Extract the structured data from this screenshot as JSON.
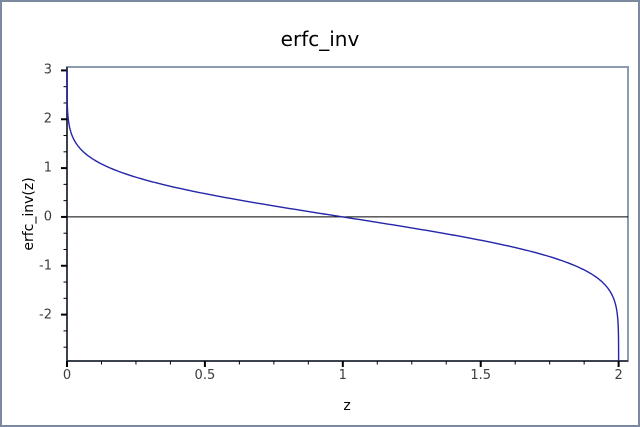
{
  "figure": {
    "background": "#ffffff",
    "border_color": "#7b89a0"
  },
  "chart_data": {
    "type": "line",
    "title": "erfc_inv",
    "xlabel": "z",
    "ylabel": "erfc_inv(z)",
    "xlim": [
      0,
      2.034
    ],
    "ylim": [
      -2.95,
      3.07
    ],
    "x_major_ticks": [
      0,
      0.5,
      1,
      1.5,
      2
    ],
    "x_major_tick_labels": [
      "0",
      "0.5",
      "1",
      "1.5",
      "2"
    ],
    "x_minor_step": 0.125,
    "y_major_ticks": [
      -2,
      -1,
      0,
      1,
      2,
      3
    ],
    "y_major_tick_labels": [
      "-2",
      "-1",
      "0",
      "1",
      "2",
      "3"
    ],
    "y_minor_step": 0.3333333,
    "grid": false,
    "legend": "none",
    "x_axis_line_at_y": 0,
    "series": [
      {
        "name": "erfc_inv(z)",
        "function": "erfc_inv",
        "color": "#2525aa",
        "points": [
          [
            2.21e-05,
            3.0
          ],
          [
            0.0001,
            2.75
          ],
          [
            0.000407,
            2.5
          ],
          [
            0.00146,
            2.25
          ],
          [
            0.00468,
            2.0
          ],
          [
            0.0133,
            1.75
          ],
          [
            0.0339,
            1.5
          ],
          [
            0.0771,
            1.25
          ],
          [
            0.1573,
            1.0
          ],
          [
            0.2888,
            0.75
          ],
          [
            0.4795,
            0.5
          ],
          [
            0.7237,
            0.25
          ],
          [
            1.0,
            0.0
          ],
          [
            1.2763,
            -0.25
          ],
          [
            1.5205,
            -0.5
          ],
          [
            1.7112,
            -0.75
          ],
          [
            1.8427,
            -1.0
          ],
          [
            1.9229,
            -1.25
          ],
          [
            1.9661,
            -1.5
          ],
          [
            1.9867,
            -1.75
          ],
          [
            1.99532,
            -2.0
          ],
          [
            1.99854,
            -2.25
          ],
          [
            1.999593,
            -2.5
          ],
          [
            1.9999,
            -2.75
          ],
          [
            1.999978,
            -2.95
          ]
        ]
      }
    ],
    "colors": {
      "frame": "#8d9bb0",
      "axis": "#20242c",
      "zero_line": "#000000",
      "tick": "#000000",
      "tick_label": "#3d3d3d",
      "title": "#000000"
    }
  }
}
